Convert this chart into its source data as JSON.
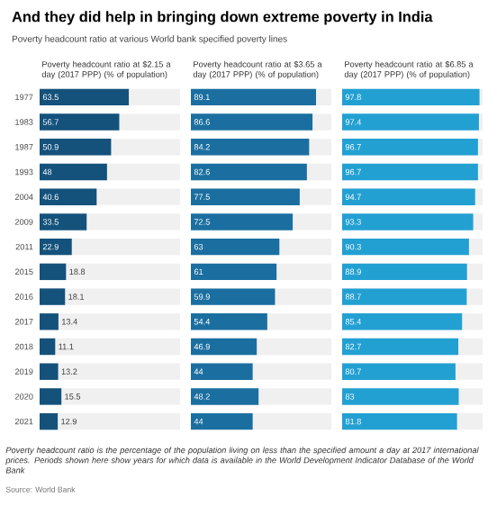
{
  "chart_data": [
    {
      "type": "bar",
      "orientation": "horizontal",
      "title": "And they did help in bringing down extreme poverty in India",
      "subtitle": "Poverty headcount ratio at various World bank specified poverty lines",
      "xlabel": "Poverty headcount ratio at $2.15 a day (2017 PPP) (% of population)",
      "categories": [
        "1977",
        "1983",
        "1987",
        "1993",
        "2004",
        "2009",
        "2011",
        "2015",
        "2016",
        "2017",
        "2018",
        "2019",
        "2020",
        "2021"
      ],
      "values": [
        63.5,
        56.7,
        50.9,
        48,
        40.6,
        33.5,
        22.9,
        18.8,
        18.1,
        13.4,
        11.1,
        13.2,
        15.5,
        12.9
      ],
      "color": "#14527c",
      "xlim": [
        0,
        100
      ],
      "data_labels": true,
      "tick_labels": "y",
      "annotations": [
        "Poverty headcount ratio is the percentage of the population living on less than the specified amount a day at 2017 international prices. Periods shown here show years for which data is available in the World Development Indicator Database of the World Bank",
        "Source: World Bank"
      ]
    },
    {
      "type": "bar",
      "orientation": "horizontal",
      "xlabel": "Poverty headcount ratio at $3.65 a day (2017 PPP) (% of population)",
      "categories": [
        "1977",
        "1983",
        "1987",
        "1993",
        "2004",
        "2009",
        "2011",
        "2015",
        "2016",
        "2017",
        "2018",
        "2019",
        "2020",
        "2021"
      ],
      "values": [
        89.1,
        86.6,
        84.2,
        82.6,
        77.5,
        72.5,
        63,
        61,
        59.9,
        54.4,
        46.9,
        44,
        48.2,
        44
      ],
      "color": "#1b6fa0",
      "xlim": [
        0,
        100
      ],
      "data_labels": true,
      "tick_labels": false
    },
    {
      "type": "bar",
      "orientation": "horizontal",
      "xlabel": "Poverty headcount ratio at $6.85 a day (2017 PPP) (% of population)",
      "categories": [
        "1977",
        "1983",
        "1987",
        "1993",
        "2004",
        "2009",
        "2011",
        "2015",
        "2016",
        "2017",
        "2018",
        "2019",
        "2020",
        "2021"
      ],
      "values": [
        97.8,
        97.4,
        96.7,
        96.7,
        94.7,
        93.3,
        90.3,
        88.9,
        88.7,
        85.4,
        82.7,
        80.7,
        83,
        81.8
      ],
      "color": "#23a0d2",
      "xlim": [
        0,
        100
      ],
      "data_labels": true,
      "tick_labels": false
    }
  ]
}
